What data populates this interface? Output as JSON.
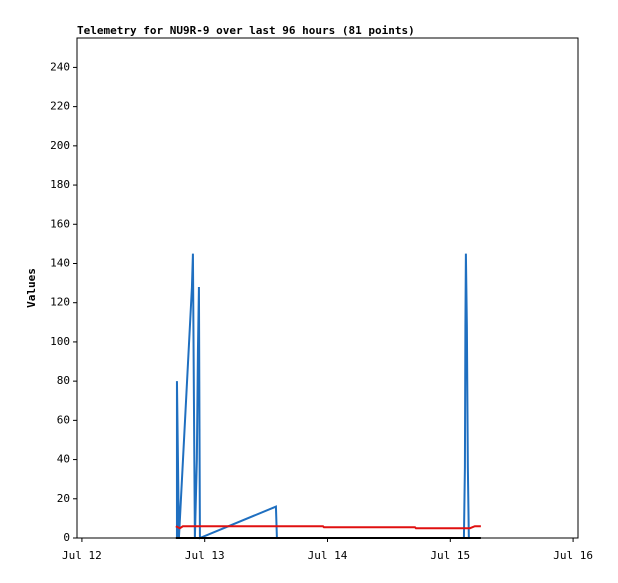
{
  "chart_data": {
    "type": "line",
    "title": "Telemetry for NU9R-9 over last 96 hours (81 points)",
    "ylabel": "Values",
    "xlim": [
      -0.04,
      4.04
    ],
    "xticks": [
      {
        "value": 0,
        "label": "Jul 12"
      },
      {
        "value": 1,
        "label": "Jul 13"
      },
      {
        "value": 2,
        "label": "Jul 14"
      },
      {
        "value": 3,
        "label": "Jul 15"
      },
      {
        "value": 4,
        "label": "Jul 16"
      }
    ],
    "ylim": [
      0,
      255
    ],
    "yticks": [
      0,
      20,
      40,
      60,
      80,
      100,
      120,
      140,
      160,
      180,
      200,
      220,
      240
    ],
    "grid": false,
    "series": [
      {
        "color": "#1f6fc0",
        "x": [
          0.774,
          0.774,
          0.782,
          0.79,
          0.896,
          0.904,
          0.912,
          0.92,
          0.936,
          0.945,
          0.953,
          0.961,
          1.58,
          1.588,
          3.111,
          3.119,
          3.123,
          3.127,
          3.135,
          3.143,
          3.151
        ],
        "values": [
          0,
          80,
          40,
          0,
          128,
          145,
          72,
          0,
          40,
          96,
          128,
          0,
          16,
          0,
          0,
          36,
          108,
          145,
          108,
          36,
          0
        ]
      },
      {
        "color": "#e01010",
        "x": [
          0.765,
          0.798,
          0.822,
          1.963,
          1.971,
          2.712,
          2.72,
          3.16,
          3.2,
          3.249
        ],
        "values": [
          6,
          5,
          6,
          6,
          5.5,
          5.5,
          5,
          5,
          6,
          6
        ]
      },
      {
        "color": "#000000",
        "x": [
          0.765,
          3.249
        ],
        "values": [
          0,
          0
        ]
      }
    ]
  }
}
